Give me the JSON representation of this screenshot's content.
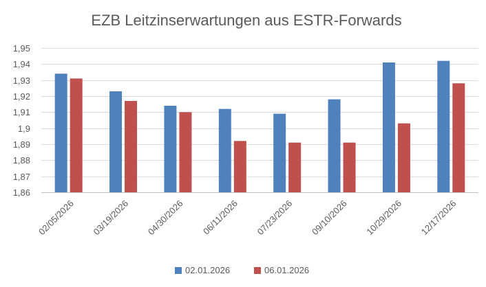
{
  "chart_data": {
    "type": "bar",
    "title": "EZB Leitzinserwartungen aus ESTR-Forwards",
    "xlabel": "",
    "ylabel": "",
    "categories": [
      "02/05/2026",
      "03/19/2026",
      "04/30/2026",
      "06/11/2026",
      "07/23/2026",
      "09/10/2026",
      "10/29/2026",
      "12/17/2026"
    ],
    "series": [
      {
        "name": "02.01.2026",
        "color": "#4f81bd",
        "values": [
          1.934,
          1.923,
          1.914,
          1.912,
          1.909,
          1.918,
          1.941,
          1.942
        ]
      },
      {
        "name": "06.01.2026",
        "color": "#c0504d",
        "values": [
          1.931,
          1.917,
          1.91,
          1.892,
          1.891,
          1.891,
          1.903,
          1.928
        ]
      }
    ],
    "ylim": [
      1.86,
      1.95
    ],
    "ytick_step": 0.01,
    "ytick_labels": [
      "1,86",
      "1,87",
      "1,88",
      "1,89",
      "1,9",
      "1,91",
      "1,92",
      "1,93",
      "1,94",
      "1,95"
    ],
    "grid": true,
    "legend_position": "bottom"
  }
}
